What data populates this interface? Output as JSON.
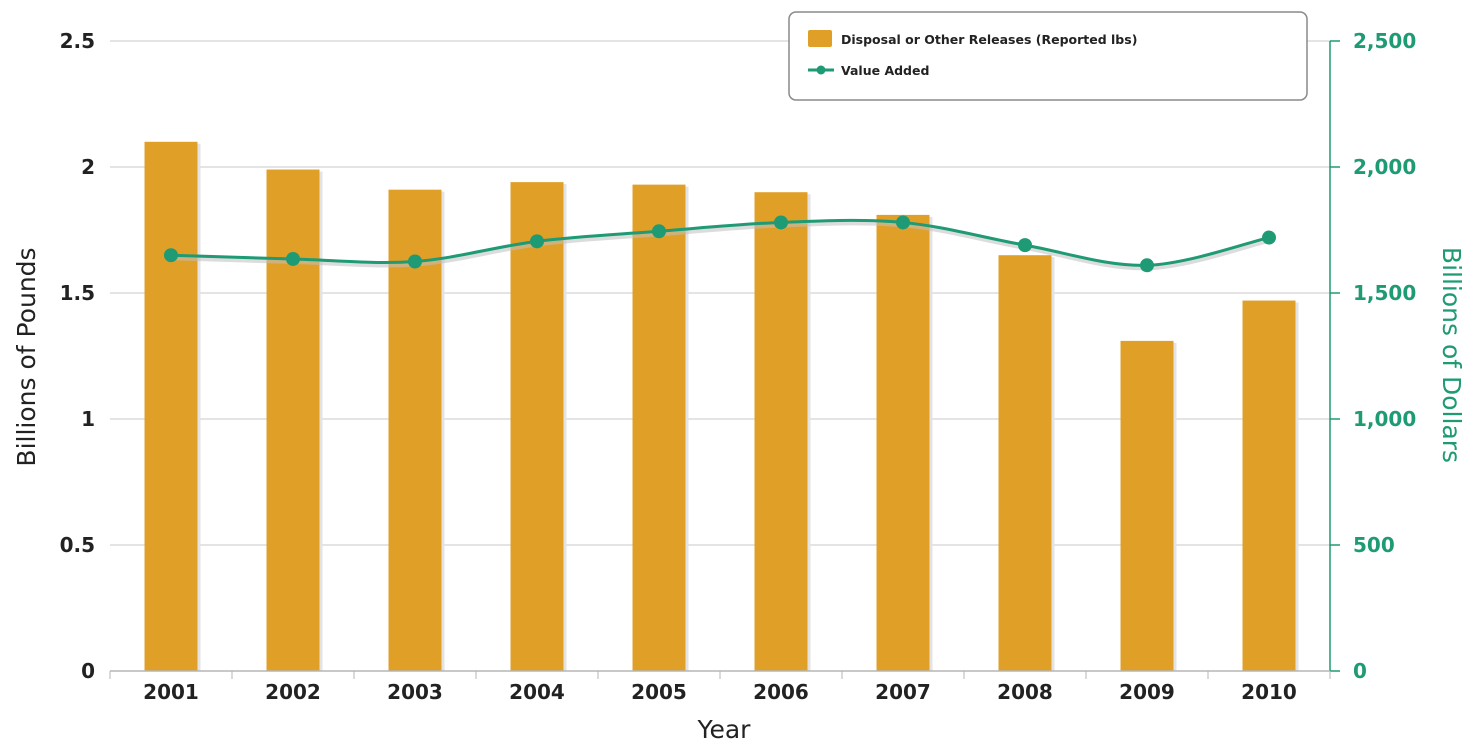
{
  "chart_data": {
    "type": "bar",
    "title": "",
    "categories": [
      "2001",
      "2002",
      "2003",
      "2004",
      "2005",
      "2006",
      "2007",
      "2008",
      "2009",
      "2010"
    ],
    "series": [
      {
        "name": "Disposal or Other Releases (Reported lbs)",
        "chart_type": "bar",
        "axis": "left",
        "color": "#E0A028",
        "values": [
          2.1,
          1.99,
          1.91,
          1.94,
          1.93,
          1.9,
          1.81,
          1.65,
          1.31,
          1.47
        ]
      },
      {
        "name": "Value Added",
        "chart_type": "line",
        "axis": "right",
        "color": "#1E9A74",
        "values": [
          1650,
          1635,
          1625,
          1705,
          1745,
          1780,
          1780,
          1690,
          1610,
          1720
        ]
      }
    ],
    "xlabel": "Year",
    "ylabel": "Billions of Pounds",
    "y2label": "Billions of Dollars",
    "ylim": [
      0,
      2.5
    ],
    "y2lim": [
      0,
      2500
    ],
    "yticks": [
      "0",
      "0.5",
      "1",
      "1.5",
      "2",
      "2.5"
    ],
    "y2ticks": [
      "0",
      "500",
      "1,000",
      "1,500",
      "2,000",
      "2,500"
    ],
    "grid": true,
    "legend_position": "top-right"
  },
  "colors": {
    "bar": "#E0A028",
    "line": "#1E9A74",
    "right_axis_text": "#1E9A74",
    "grid": "#c8c8c8"
  }
}
